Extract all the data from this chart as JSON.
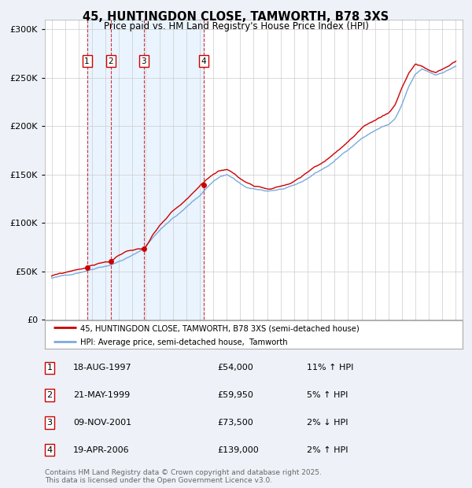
{
  "title": "45, HUNTINGDON CLOSE, TAMWORTH, B78 3XS",
  "subtitle": "Price paid vs. HM Land Registry's House Price Index (HPI)",
  "red_line_label": "45, HUNTINGDON CLOSE, TAMWORTH, B78 3XS (semi-detached house)",
  "blue_line_label": "HPI: Average price, semi-detached house,  Tamworth",
  "sales": [
    {
      "num": 1,
      "date": "18-AUG-1997",
      "price": 54000,
      "year": 1997.63,
      "hpi_pct": "11%",
      "hpi_dir": "↑"
    },
    {
      "num": 2,
      "date": "21-MAY-1999",
      "price": 59950,
      "year": 1999.38,
      "hpi_pct": "5%",
      "hpi_dir": "↑"
    },
    {
      "num": 3,
      "date": "09-NOV-2001",
      "price": 73500,
      "year": 2001.85,
      "hpi_pct": "2%",
      "hpi_dir": "↓"
    },
    {
      "num": 4,
      "date": "19-APR-2006",
      "price": 139000,
      "year": 2006.3,
      "hpi_pct": "2%",
      "hpi_dir": "↑"
    }
  ],
  "footer": "Contains HM Land Registry data © Crown copyright and database right 2025.\nThis data is licensed under the Open Government Licence v3.0.",
  "background_color": "#eef2f8",
  "plot_background": "#ffffff",
  "red_color": "#cc0000",
  "blue_color": "#7aaadd",
  "shade_color": "#ddeeff",
  "ylim": [
    0,
    310000
  ],
  "xlim": [
    1994.5,
    2025.5
  ],
  "key_years_b": [
    1995.0,
    1995.5,
    1996.0,
    1996.5,
    1997.0,
    1997.5,
    1998.0,
    1998.5,
    1999.0,
    1999.5,
    2000.0,
    2000.5,
    2001.0,
    2001.5,
    2002.0,
    2002.5,
    2003.0,
    2003.5,
    2004.0,
    2004.5,
    2005.0,
    2005.5,
    2006.0,
    2006.5,
    2007.0,
    2007.5,
    2008.0,
    2008.5,
    2009.0,
    2009.5,
    2010.0,
    2010.5,
    2011.0,
    2011.5,
    2012.0,
    2012.5,
    2013.0,
    2013.5,
    2014.0,
    2014.5,
    2015.0,
    2015.5,
    2016.0,
    2016.5,
    2017.0,
    2017.5,
    2018.0,
    2018.5,
    2019.0,
    2019.5,
    2020.0,
    2020.5,
    2021.0,
    2021.5,
    2022.0,
    2022.5,
    2023.0,
    2023.5,
    2024.0,
    2024.5,
    2025.0
  ],
  "key_vals_b": [
    43000,
    44000,
    45500,
    47000,
    49000,
    51000,
    53000,
    55500,
    57000,
    59000,
    62000,
    65000,
    68000,
    72000,
    78000,
    86000,
    94000,
    101000,
    107000,
    112000,
    118000,
    124000,
    130000,
    138000,
    145000,
    150000,
    152000,
    148000,
    142000,
    138000,
    136000,
    135000,
    134000,
    135000,
    136000,
    137000,
    139000,
    142000,
    146000,
    151000,
    155000,
    159000,
    164000,
    170000,
    176000,
    182000,
    188000,
    192000,
    196000,
    200000,
    202000,
    208000,
    222000,
    240000,
    253000,
    258000,
    255000,
    252000,
    255000,
    258000,
    262000
  ],
  "key_years_r": [
    1995.0,
    1995.5,
    1996.0,
    1996.5,
    1997.0,
    1997.5,
    1997.63,
    1998.0,
    1998.5,
    1999.0,
    1999.38,
    1999.5,
    2000.0,
    2000.5,
    2001.0,
    2001.5,
    2001.85,
    2002.0,
    2002.5,
    2003.0,
    2003.5,
    2004.0,
    2004.5,
    2005.0,
    2005.5,
    2006.0,
    2006.3,
    2006.5,
    2007.0,
    2007.5,
    2008.0,
    2008.5,
    2009.0,
    2009.5,
    2010.0,
    2010.5,
    2011.0,
    2011.5,
    2012.0,
    2012.5,
    2013.0,
    2013.5,
    2014.0,
    2014.5,
    2015.0,
    2015.5,
    2016.0,
    2016.5,
    2017.0,
    2017.5,
    2018.0,
    2018.5,
    2019.0,
    2019.5,
    2020.0,
    2020.5,
    2021.0,
    2021.5,
    2022.0,
    2022.5,
    2023.0,
    2023.5,
    2024.0,
    2024.5,
    2025.0
  ],
  "key_vals_r": [
    45000,
    46500,
    48000,
    50000,
    52000,
    53500,
    54000,
    56000,
    58000,
    60000,
    59950,
    62000,
    66000,
    70000,
    72000,
    73000,
    73500,
    76000,
    88000,
    97000,
    104000,
    111000,
    116000,
    122000,
    128000,
    135000,
    139000,
    142000,
    148000,
    152000,
    154000,
    150000,
    144000,
    140000,
    138000,
    137000,
    136000,
    137000,
    139000,
    141000,
    144000,
    148000,
    153000,
    158000,
    162000,
    167000,
    173000,
    179000,
    185000,
    191000,
    197000,
    201000,
    205000,
    209000,
    213000,
    222000,
    240000,
    255000,
    265000,
    262000,
    258000,
    255000,
    258000,
    262000,
    267000
  ]
}
